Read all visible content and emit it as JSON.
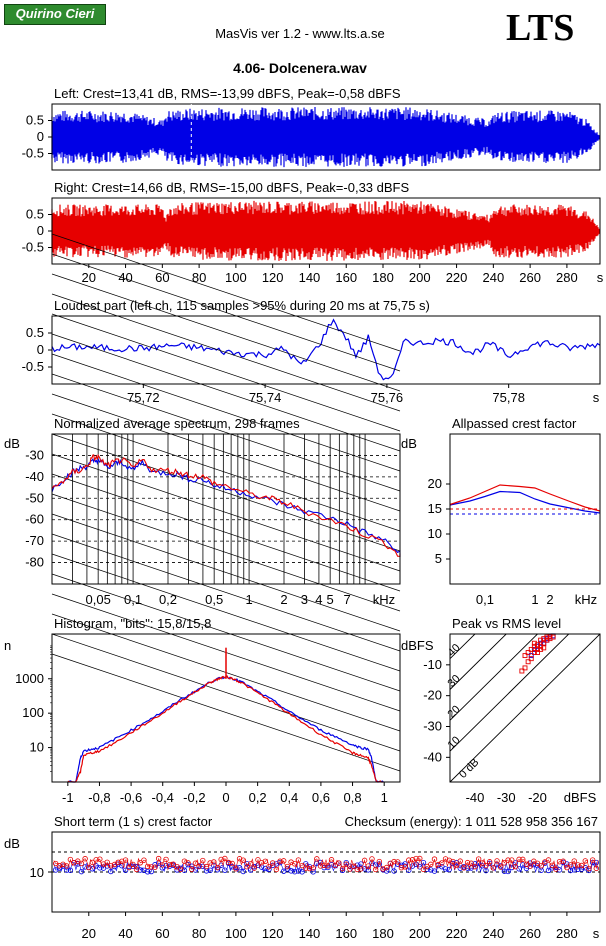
{
  "header": {
    "logo": "Quirino Cieri",
    "program": "MasVis ver 1.2 - www.lts.a.se",
    "brand": "LTS",
    "file": "4.06- Dolcenera.wav"
  },
  "colors": {
    "left": "#0000e6",
    "right": "#e60000",
    "dashed": "#000000"
  },
  "chart_data": [
    {
      "id": "left-wave",
      "type": "area",
      "title": "Left: Crest=13,41 dB, RMS=-13,99 dBFS, Peak=-0,58 dBFS",
      "ylim": [
        -1,
        1
      ],
      "xlim": [
        0,
        298
      ],
      "yticks": [
        "0.5",
        "0",
        "-0.5"
      ],
      "amplitude_envelope": [
        [
          0,
          0.85
        ],
        [
          20,
          0.85
        ],
        [
          40,
          0.85
        ],
        [
          60,
          0.55
        ],
        [
          62,
          0.85
        ],
        [
          75.75,
          0.92
        ],
        [
          100,
          0.96
        ],
        [
          150,
          0.96
        ],
        [
          200,
          0.96
        ],
        [
          238,
          0.55
        ],
        [
          241,
          0.8
        ],
        [
          255,
          0.85
        ],
        [
          280,
          0.85
        ],
        [
          290,
          0.6
        ],
        [
          298,
          0.05
        ]
      ]
    },
    {
      "id": "right-wave",
      "type": "area",
      "title": "Right: Crest=14,66 dB, RMS=-15,00 dBFS, Peak=-0,33 dBFS",
      "ylim": [
        -1,
        1
      ],
      "xlim": [
        0,
        298
      ],
      "xticks": [
        "20",
        "40",
        "60",
        "80",
        "100",
        "120",
        "140",
        "160",
        "180",
        "200",
        "220",
        "240",
        "260",
        "280",
        "s"
      ],
      "yticks": [
        "0.5",
        "0",
        "-0.5"
      ],
      "amplitude_envelope": [
        [
          0,
          0.85
        ],
        [
          60,
          0.85
        ],
        [
          62,
          0.5
        ],
        [
          64,
          0.85
        ],
        [
          75.75,
          0.92
        ],
        [
          100,
          0.96
        ],
        [
          200,
          0.96
        ],
        [
          238,
          0.5
        ],
        [
          241,
          0.85
        ],
        [
          280,
          0.85
        ],
        [
          292,
          0.6
        ],
        [
          298,
          0.05
        ]
      ]
    },
    {
      "id": "loudest-part",
      "type": "line",
      "title": "Loudest part (left  ch, 115 samples >95% during 20 ms at 75,75 s)",
      "xlim": [
        75.705,
        75.795
      ],
      "ylim": [
        -1,
        1
      ],
      "xticks": [
        "75,72",
        "75,74",
        "75,76",
        "75,78",
        "s"
      ],
      "yticks": [
        "0.5",
        "0",
        "-0.5"
      ],
      "x": [
        75.705,
        75.71,
        75.715,
        75.72,
        75.725,
        75.73,
        75.735,
        75.74,
        75.743,
        75.746,
        75.749,
        75.751,
        75.753,
        75.755,
        75.757,
        75.759,
        75.761,
        75.763,
        75.765,
        75.768,
        75.771,
        75.774,
        75.777,
        75.78,
        75.783,
        75.786,
        75.79,
        75.795
      ],
      "y": [
        0.05,
        0.1,
        0.05,
        0.05,
        0.15,
        0.05,
        -0.1,
        -0.15,
        0.05,
        -0.5,
        0.2,
        0.95,
        0.5,
        -0.2,
        0.4,
        -0.9,
        -0.85,
        0.35,
        0.2,
        0.3,
        0.25,
        -0.1,
        0.2,
        -0.2,
        0.1,
        0.25,
        0.05,
        0.2
      ]
    },
    {
      "id": "spectrum",
      "type": "line",
      "title": "Normalized average spectrum, 298 frames",
      "ylabel": "dB",
      "xscale": "log",
      "xlim": [
        0.02,
        20
      ],
      "ylim": [
        -90,
        -20
      ],
      "xticks": [
        "0,05",
        "0,1",
        "0,2",
        "0,5",
        "1",
        "2",
        "3",
        "4",
        "5",
        "7",
        "kHz"
      ],
      "yticks": [
        "-30",
        "-40",
        "-50",
        "-60",
        "-70",
        "-80"
      ],
      "x": [
        0.02,
        0.025,
        0.03,
        0.035,
        0.04,
        0.045,
        0.05,
        0.06,
        0.07,
        0.08,
        0.1,
        0.12,
        0.15,
        0.2,
        0.25,
        0.3,
        0.4,
        0.5,
        0.7,
        1,
        1.5,
        2,
        3,
        5,
        7,
        10,
        15,
        20
      ],
      "series": [
        {
          "color": "#0000e6",
          "values": [
            -46,
            -41,
            -38,
            -36,
            -35,
            -33,
            -32,
            -36,
            -34,
            -33,
            -37,
            -33,
            -38,
            -38,
            -39,
            -41,
            -41,
            -44,
            -46,
            -48,
            -51,
            -53,
            -56,
            -59,
            -62,
            -66,
            -70,
            -76
          ]
        },
        {
          "color": "#e60000",
          "values": [
            -46,
            -42,
            -38,
            -37,
            -35,
            -31,
            -31,
            -35,
            -33,
            -32,
            -36,
            -32,
            -37,
            -37,
            -38,
            -39,
            -40,
            -43,
            -45,
            -48,
            -50,
            -52,
            -56,
            -60,
            -63,
            -67,
            -71,
            -77
          ]
        }
      ]
    },
    {
      "id": "allpass-crest",
      "type": "line",
      "title": "Allpassed crest factor",
      "ylabel": "dB",
      "xscale": "log",
      "xlim": [
        0.02,
        20
      ],
      "ylim": [
        0,
        30
      ],
      "xticks": [
        "0,1",
        "1",
        "2",
        "kHz"
      ],
      "yticks": [
        "20",
        "15",
        "10",
        "5"
      ],
      "x": [
        0.02,
        0.05,
        0.1,
        0.2,
        0.5,
        1,
        2,
        5,
        10,
        20
      ],
      "series": [
        {
          "color": "#0000e6",
          "values": [
            15.8,
            16.6,
            17.5,
            18.5,
            18.3,
            17,
            16,
            15.2,
            14.6,
            14.2
          ],
          "reference": 13.99
        },
        {
          "color": "#e60000",
          "values": [
            15.9,
            17.2,
            18.5,
            19.8,
            19.5,
            19.2,
            18,
            16.5,
            15.4,
            14.6
          ],
          "reference": 15.0
        }
      ]
    },
    {
      "id": "histogram",
      "type": "line",
      "title": "Histogram, \"bits\": 15,8/15,8",
      "ylabel": "n",
      "yscale": "log",
      "xlim": [
        -1.1,
        1.1
      ],
      "ylim": [
        1,
        20000
      ],
      "xticks": [
        "-1",
        "-0,8",
        "-0,6",
        "-0,4",
        "-0,2",
        "0",
        "0,2",
        "0,4",
        "0,6",
        "0,8",
        "1"
      ],
      "yticks": [
        "1000",
        "100",
        "10"
      ],
      "x": [
        -1,
        -0.95,
        -0.92,
        -0.9,
        -0.85,
        -0.8,
        -0.7,
        -0.6,
        -0.5,
        -0.4,
        -0.3,
        -0.2,
        -0.1,
        -0.05,
        0,
        0.05,
        0.1,
        0.2,
        0.3,
        0.4,
        0.5,
        0.6,
        0.7,
        0.8,
        0.85,
        0.9,
        0.92,
        0.95,
        1
      ],
      "series": [
        {
          "color": "#0000e6",
          "values": [
            1,
            1,
            5,
            8,
            9,
            10,
            18,
            32,
            60,
            110,
            230,
            420,
            800,
            1000,
            1150,
            1000,
            800,
            420,
            230,
            110,
            60,
            32,
            20,
            12,
            10,
            9,
            5,
            1,
            1
          ]
        },
        {
          "color": "#e60000",
          "values": [
            1,
            1,
            2,
            6,
            7,
            8,
            14,
            27,
            52,
            100,
            210,
            400,
            780,
            990,
            1150,
            980,
            760,
            390,
            200,
            95,
            48,
            24,
            13,
            7,
            6,
            5,
            3,
            1,
            1
          ]
        }
      ],
      "center_spike": 8000
    },
    {
      "id": "peak-vs-rms",
      "type": "scatter",
      "title": "Peak vs RMS level",
      "ylabel": "dBFS",
      "xlabel": "dBFS",
      "xlim": [
        -48,
        0
      ],
      "ylim": [
        -48,
        0
      ],
      "xticks": [
        "-40",
        "-30",
        "-20",
        "dBFS"
      ],
      "yticks": [
        "-10",
        "-20",
        "-30",
        "-40"
      ],
      "diag_labels": [
        "40",
        "30",
        "20",
        "10",
        "0 dB"
      ],
      "series": [
        {
          "color": "#0000e6",
          "points": [
            [
              -19,
              -3
            ],
            [
              -18,
              -2
            ],
            [
              -17,
              -1.5
            ],
            [
              -20,
              -4
            ],
            [
              -16,
              -1
            ],
            [
              -21,
              -5
            ],
            [
              -15,
              -0.6
            ],
            [
              -22,
              -7
            ],
            [
              -18,
              -3
            ],
            [
              -17,
              -2
            ]
          ]
        },
        {
          "color": "#e60000",
          "points": [
            [
              -20,
              -5
            ],
            [
              -19,
              -4
            ],
            [
              -18,
              -3
            ],
            [
              -17,
              -2
            ],
            [
              -21,
              -6
            ],
            [
              -22,
              -8
            ],
            [
              -16,
              -1.5
            ],
            [
              -15,
              -1
            ],
            [
              -24,
              -11
            ],
            [
              -23,
              -9
            ],
            [
              -20,
              -3.5
            ],
            [
              -19,
              -2
            ],
            [
              -18,
              -1.5
            ],
            [
              -21,
              -4
            ],
            [
              -22,
              -5
            ],
            [
              -17,
              -1
            ],
            [
              -25,
              -12
            ],
            [
              -20,
              -6
            ],
            [
              -19,
              -5
            ],
            [
              -16,
              -0.8
            ],
            [
              -23,
              -6
            ],
            [
              -18,
              -4.5
            ],
            [
              -24,
              -7
            ],
            [
              -21,
              -3
            ]
          ]
        }
      ]
    },
    {
      "id": "short-term-crest",
      "type": "scatter",
      "title": "Short term (1 s) crest factor",
      "checksum": "Checksum (energy):  1 011 528 958 356 167",
      "ylabel": "dB",
      "xlim": [
        0,
        298
      ],
      "ylim": [
        0,
        20
      ],
      "xticks": [
        "20",
        "40",
        "60",
        "80",
        "100",
        "120",
        "140",
        "160",
        "180",
        "200",
        "220",
        "240",
        "260",
        "280",
        "s"
      ],
      "yticks": [
        "10"
      ],
      "dashed": [
        15,
        10
      ],
      "series": [
        {
          "color": "#0000e6",
          "base": 11.2,
          "spread": 1.2
        },
        {
          "color": "#e60000",
          "base": 12.0,
          "spread": 1.4
        }
      ]
    }
  ]
}
